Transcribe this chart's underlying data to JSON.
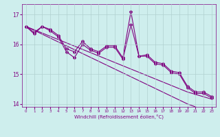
{
  "xlabel": "Windchill (Refroidissement éolien,°C)",
  "background_color": "#ceeeed",
  "line_color": "#800080",
  "x_hours": [
    0,
    1,
    2,
    3,
    4,
    5,
    6,
    7,
    8,
    9,
    10,
    11,
    12,
    13,
    14,
    15,
    16,
    17,
    18,
    19,
    20,
    21,
    22,
    23
  ],
  "series1": [
    16.6,
    16.4,
    16.6,
    16.5,
    16.3,
    15.85,
    15.75,
    16.1,
    15.85,
    15.75,
    15.95,
    15.95,
    15.55,
    17.1,
    15.6,
    15.65,
    15.4,
    15.35,
    15.1,
    15.05,
    14.6,
    14.4,
    14.4,
    14.25
  ],
  "series2": [
    16.6,
    16.35,
    16.6,
    16.45,
    16.25,
    15.75,
    15.55,
    16.0,
    15.8,
    15.7,
    15.9,
    15.9,
    15.5,
    16.65,
    15.6,
    15.6,
    15.35,
    15.3,
    15.05,
    15.0,
    14.55,
    14.35,
    14.35,
    14.2
  ],
  "trend1": [
    16.6,
    16.47,
    16.34,
    16.21,
    16.08,
    15.95,
    15.82,
    15.69,
    15.56,
    15.43,
    15.3,
    15.17,
    15.04,
    14.91,
    14.78,
    14.65,
    14.52,
    14.39,
    14.26,
    14.13,
    14.0,
    13.9,
    13.8,
    13.7
  ],
  "trend2": [
    16.6,
    16.49,
    16.38,
    16.27,
    16.16,
    16.05,
    15.94,
    15.83,
    15.72,
    15.61,
    15.5,
    15.39,
    15.28,
    15.17,
    15.06,
    14.95,
    14.84,
    14.73,
    14.62,
    14.51,
    14.4,
    14.32,
    14.24,
    14.16
  ],
  "ylim": [
    13.9,
    17.35
  ],
  "yticks": [
    14,
    15,
    16,
    17
  ],
  "grid_color": "#b0d0d0",
  "marker": "D",
  "markersize": 2.0,
  "linewidth": 0.8
}
